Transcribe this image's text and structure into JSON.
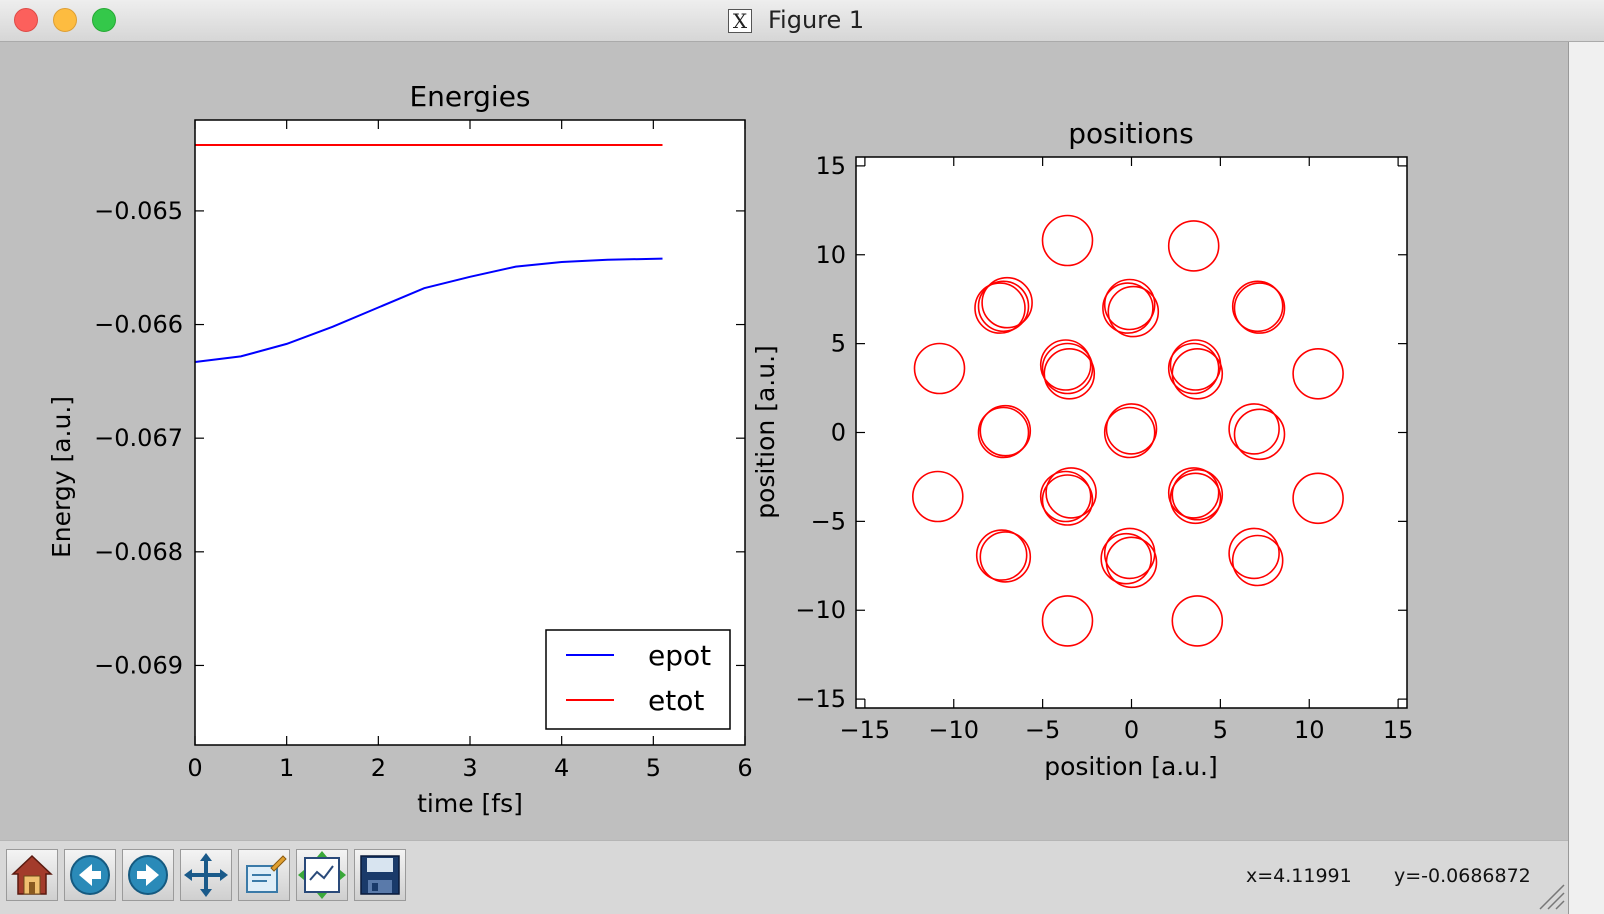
{
  "window": {
    "title": "Figure 1",
    "app_icon": "x11-icon"
  },
  "toolbar": {
    "buttons": [
      {
        "name": "home-button",
        "icon": "home-icon"
      },
      {
        "name": "back-button",
        "icon": "arrow-left-icon"
      },
      {
        "name": "forward-button",
        "icon": "arrow-right-icon"
      },
      {
        "name": "pan-button",
        "icon": "move-arrows-icon"
      },
      {
        "name": "zoom-button",
        "icon": "zoom-rect-icon"
      },
      {
        "name": "subplots-button",
        "icon": "subplot-config-icon"
      },
      {
        "name": "save-button",
        "icon": "floppy-disk-icon"
      }
    ],
    "x_readout": "x=4.11991",
    "y_readout": "y=-0.0686872"
  },
  "chart_data": [
    {
      "type": "line",
      "title": "Energies",
      "xlabel": "time [fs]",
      "ylabel": "Energy [a.u.]",
      "xlim": [
        0,
        6
      ],
      "ylim": [
        -0.0697,
        -0.0642
      ],
      "xticks": [
        "0",
        "1",
        "2",
        "3",
        "4",
        "5",
        "6"
      ],
      "yticks": [
        "−0.065",
        "−0.066",
        "−0.067",
        "−0.068",
        "−0.069"
      ],
      "ytick_values": [
        -0.065,
        -0.066,
        -0.067,
        -0.068,
        -0.069
      ],
      "legend_location": "lower right",
      "grid": false,
      "series": [
        {
          "name": "epot",
          "color": "#0000ff",
          "x": [
            0,
            0.5,
            1.0,
            1.5,
            2.0,
            2.5,
            3.0,
            3.5,
            4.0,
            4.5,
            5.1
          ],
          "y": [
            -0.06633,
            -0.06628,
            -0.06617,
            -0.06602,
            -0.06585,
            -0.06568,
            -0.06558,
            -0.06549,
            -0.06545,
            -0.06543,
            -0.06542
          ]
        },
        {
          "name": "etot",
          "color": "#ff0000",
          "x": [
            0,
            5.1
          ],
          "y": [
            -0.06442,
            -0.06442
          ]
        }
      ]
    },
    {
      "type": "scatter",
      "title": "positions",
      "xlabel": "position [a.u.]",
      "ylabel": "position [a.u.]",
      "xlim": [
        -15.5,
        15.5
      ],
      "ylim": [
        -15.5,
        15.5
      ],
      "xticks": [
        "−15",
        "−10",
        "−5",
        "0",
        "5",
        "10",
        "15"
      ],
      "yticks": [
        "15",
        "10",
        "5",
        "0",
        "−5",
        "−10",
        "−15"
      ],
      "xtick_values": [
        -15,
        -10,
        -5,
        0,
        5,
        10,
        15
      ],
      "ytick_values": [
        15,
        10,
        5,
        0,
        -5,
        -10,
        -15
      ],
      "marker": "open-circle",
      "marker_color": "#ff0000",
      "grid": false,
      "points": [
        [
          -3.6,
          10.8
        ],
        [
          3.5,
          10.5
        ],
        [
          -7.4,
          7.0
        ],
        [
          -7.0,
          7.3
        ],
        [
          -7.2,
          7.1
        ],
        [
          -0.2,
          7.0
        ],
        [
          0.1,
          6.8
        ],
        [
          -0.1,
          7.2
        ],
        [
          7.1,
          7.1
        ],
        [
          7.2,
          7.0
        ],
        [
          -10.8,
          3.6
        ],
        [
          10.5,
          3.3
        ],
        [
          -3.6,
          3.6
        ],
        [
          -3.5,
          3.3
        ],
        [
          -3.7,
          3.8
        ],
        [
          3.5,
          3.6
        ],
        [
          3.7,
          3.3
        ],
        [
          3.6,
          3.8
        ],
        [
          -7.2,
          0.0
        ],
        [
          -7.1,
          0.1
        ],
        [
          -0.1,
          0.0
        ],
        [
          0.0,
          0.2
        ],
        [
          6.9,
          0.2
        ],
        [
          7.2,
          -0.1
        ],
        [
          -10.9,
          -3.6
        ],
        [
          10.5,
          -3.7
        ],
        [
          -3.7,
          -3.6
        ],
        [
          -3.4,
          -3.4
        ],
        [
          -3.6,
          -3.8
        ],
        [
          3.5,
          -3.4
        ],
        [
          3.6,
          -3.7
        ],
        [
          3.7,
          -3.5
        ],
        [
          -7.3,
          -6.9
        ],
        [
          -7.1,
          -7.0
        ],
        [
          -0.3,
          -7.1
        ],
        [
          0.0,
          -7.3
        ],
        [
          -0.1,
          -6.8
        ],
        [
          6.9,
          -6.8
        ],
        [
          7.1,
          -7.2
        ],
        [
          -3.6,
          -10.6
        ],
        [
          3.7,
          -10.6
        ]
      ]
    }
  ]
}
